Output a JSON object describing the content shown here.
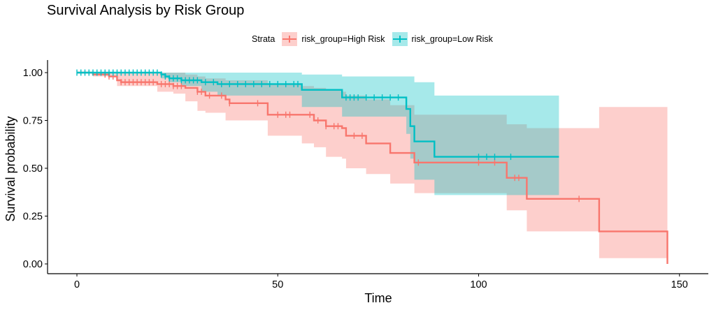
{
  "chart_data": {
    "type": "line",
    "title": "Survival Analysis by Risk Group",
    "xlabel": "Time",
    "ylabel": "Survival probability",
    "xlim": [
      -7.5,
      157
    ],
    "ylim": [
      -0.05,
      1.05
    ],
    "xticks": [
      "0",
      "50",
      "100",
      "150"
    ],
    "yticks": [
      "0.00",
      "0.25",
      "0.50",
      "0.75",
      "1.00"
    ],
    "grid": false,
    "legend": {
      "title": "Strata",
      "position": "top"
    },
    "series": [
      {
        "name": "risk_group=High Risk",
        "color": "#F8766D",
        "fill": "#F8766D",
        "steps": [
          [
            0,
            1.0
          ],
          [
            4,
            0.99
          ],
          [
            8,
            0.98
          ],
          [
            10,
            0.96
          ],
          [
            11,
            0.95
          ],
          [
            20,
            0.94
          ],
          [
            24,
            0.93
          ],
          [
            27,
            0.92
          ],
          [
            30,
            0.9
          ],
          [
            32,
            0.88
          ],
          [
            37,
            0.86
          ],
          [
            38,
            0.84
          ],
          [
            47,
            0.84
          ],
          [
            47.5,
            0.78
          ],
          [
            56,
            0.78
          ],
          [
            59,
            0.75
          ],
          [
            59.5,
            0.75
          ],
          [
            62,
            0.72
          ],
          [
            66,
            0.71
          ],
          [
            66.5,
            0.71
          ],
          [
            67,
            0.67
          ],
          [
            72,
            0.63
          ],
          [
            78,
            0.58
          ],
          [
            84,
            0.53
          ],
          [
            107,
            0.45
          ],
          [
            112,
            0.34
          ],
          [
            130,
            0.17
          ],
          [
            147,
            0.0
          ]
        ],
        "upper": [
          [
            0,
            1.0
          ],
          [
            4,
            1.0
          ],
          [
            10,
            1.0
          ],
          [
            20,
            1.0
          ],
          [
            24,
            1.0
          ],
          [
            27,
            0.99
          ],
          [
            30,
            0.98
          ],
          [
            32,
            0.97
          ],
          [
            37,
            0.96
          ],
          [
            47.5,
            0.94
          ],
          [
            56,
            0.93
          ],
          [
            59,
            0.92
          ],
          [
            62,
            0.91
          ],
          [
            66,
            0.9
          ],
          [
            67,
            0.88
          ],
          [
            72,
            0.86
          ],
          [
            78,
            0.83
          ],
          [
            84,
            0.78
          ],
          [
            107,
            0.73
          ],
          [
            112,
            0.71
          ],
          [
            130,
            0.82
          ],
          [
            147,
            0.82
          ]
        ],
        "lower": [
          [
            0,
            1.0
          ],
          [
            4,
            0.98
          ],
          [
            10,
            0.93
          ],
          [
            20,
            0.9
          ],
          [
            24,
            0.89
          ],
          [
            27,
            0.85
          ],
          [
            30,
            0.8
          ],
          [
            32,
            0.79
          ],
          [
            37,
            0.75
          ],
          [
            47.5,
            0.67
          ],
          [
            56,
            0.63
          ],
          [
            59,
            0.61
          ],
          [
            62,
            0.56
          ],
          [
            66,
            0.55
          ],
          [
            67,
            0.5
          ],
          [
            72,
            0.47
          ],
          [
            78,
            0.42
          ],
          [
            84,
            0.37
          ],
          [
            107,
            0.28
          ],
          [
            112,
            0.17
          ],
          [
            130,
            0.03
          ],
          [
            147,
            0.03
          ]
        ],
        "censor_times": [
          7,
          8,
          9,
          11,
          12,
          13,
          14,
          15,
          16,
          17,
          18,
          19,
          21,
          22,
          23,
          24,
          25,
          26,
          30,
          31,
          33,
          36,
          38,
          45,
          50,
          52,
          53,
          58,
          60,
          62,
          64,
          65,
          69,
          71,
          85,
          100,
          104,
          109,
          110,
          125
        ]
      },
      {
        "name": "risk_group=Low Risk",
        "color": "#00BFC4",
        "fill": "#00BFC4",
        "steps": [
          [
            0,
            1.0
          ],
          [
            21,
            0.99
          ],
          [
            22,
            0.98
          ],
          [
            23,
            0.97
          ],
          [
            26,
            0.96
          ],
          [
            31,
            0.95
          ],
          [
            35,
            0.94
          ],
          [
            56,
            0.91
          ],
          [
            66,
            0.87
          ],
          [
            82,
            0.81
          ],
          [
            83,
            0.72
          ],
          [
            84,
            0.64
          ],
          [
            89,
            0.56
          ],
          [
            120,
            0.56
          ]
        ],
        "upper": [
          [
            0,
            1.0
          ],
          [
            21,
            1.0
          ],
          [
            35,
            1.0
          ],
          [
            56,
            0.99
          ],
          [
            66,
            0.98
          ],
          [
            80,
            0.98
          ],
          [
            84,
            0.95
          ],
          [
            89,
            0.88
          ],
          [
            120,
            0.88
          ]
        ],
        "lower": [
          [
            0,
            1.0
          ],
          [
            21,
            0.97
          ],
          [
            23,
            0.95
          ],
          [
            26,
            0.93
          ],
          [
            31,
            0.9
          ],
          [
            35,
            0.88
          ],
          [
            56,
            0.82
          ],
          [
            66,
            0.77
          ],
          [
            82,
            0.68
          ],
          [
            83,
            0.55
          ],
          [
            84,
            0.44
          ],
          [
            89,
            0.36
          ],
          [
            120,
            0.36
          ]
        ],
        "censor_times": [
          0,
          1,
          2,
          3,
          4,
          5,
          6,
          7,
          8,
          9,
          10,
          11,
          12,
          13,
          14,
          15,
          16,
          17,
          18,
          19,
          20,
          21,
          22,
          23,
          24,
          25,
          26,
          27,
          28,
          29,
          30,
          32,
          34,
          36,
          38,
          40,
          42,
          44,
          46,
          48,
          50,
          52,
          54,
          55,
          67,
          68,
          69,
          70,
          72,
          74,
          76,
          78,
          80,
          100,
          102,
          104,
          108
        ]
      }
    ]
  }
}
